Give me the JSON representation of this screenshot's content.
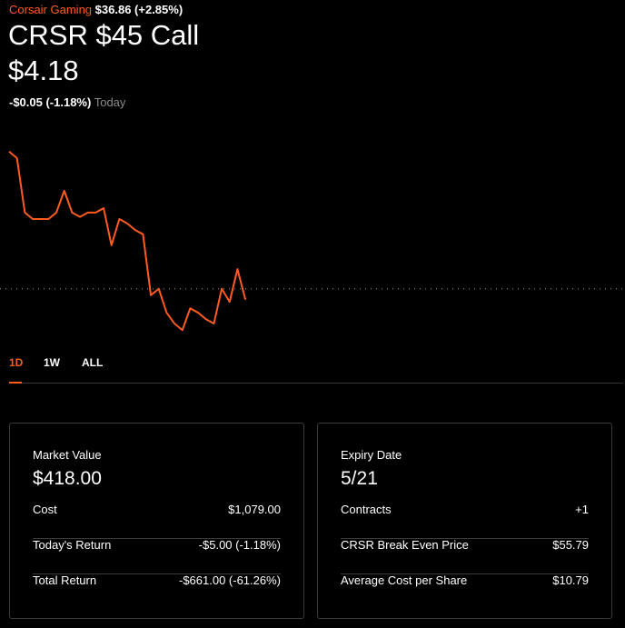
{
  "header": {
    "company": "Corsair Gaming",
    "stock_price": "$36.86",
    "stock_change": "(+2.85%)",
    "title": "CRSR $45 Call",
    "price": "$4.18",
    "change": "-$0.05 (-1.18%)",
    "period": "Today"
  },
  "chart": {
    "type": "line",
    "color": "#ff5a1f",
    "reference": 4.23,
    "ylim": [
      3.97,
      4.93
    ],
    "values": [
      4.86,
      4.83,
      4.58,
      4.55,
      4.55,
      4.55,
      4.58,
      4.68,
      4.58,
      4.56,
      4.58,
      4.58,
      4.6,
      4.43,
      4.55,
      4.53,
      4.5,
      4.48,
      4.2,
      4.23,
      4.12,
      4.07,
      4.04,
      4.14,
      4.12,
      4.09,
      4.07,
      4.23,
      4.17,
      4.32,
      4.18
    ]
  },
  "tabs": [
    "1D",
    "1W",
    "ALL"
  ],
  "cards": [
    {
      "label": "Market Value",
      "value": "$418.00",
      "rows": [
        [
          "Cost",
          "$1,079.00"
        ],
        [
          "Today's Return",
          "-$5.00 (-1.18%)"
        ],
        [
          "Total Return",
          "-$661.00 (-61.26%)"
        ]
      ]
    },
    {
      "label": "Expiry Date",
      "value": "5/21",
      "rows": [
        [
          "Contracts",
          "+1"
        ],
        [
          "CRSR Break Even Price",
          "$55.79"
        ],
        [
          "Average Cost per Share",
          "$10.79"
        ]
      ]
    }
  ]
}
